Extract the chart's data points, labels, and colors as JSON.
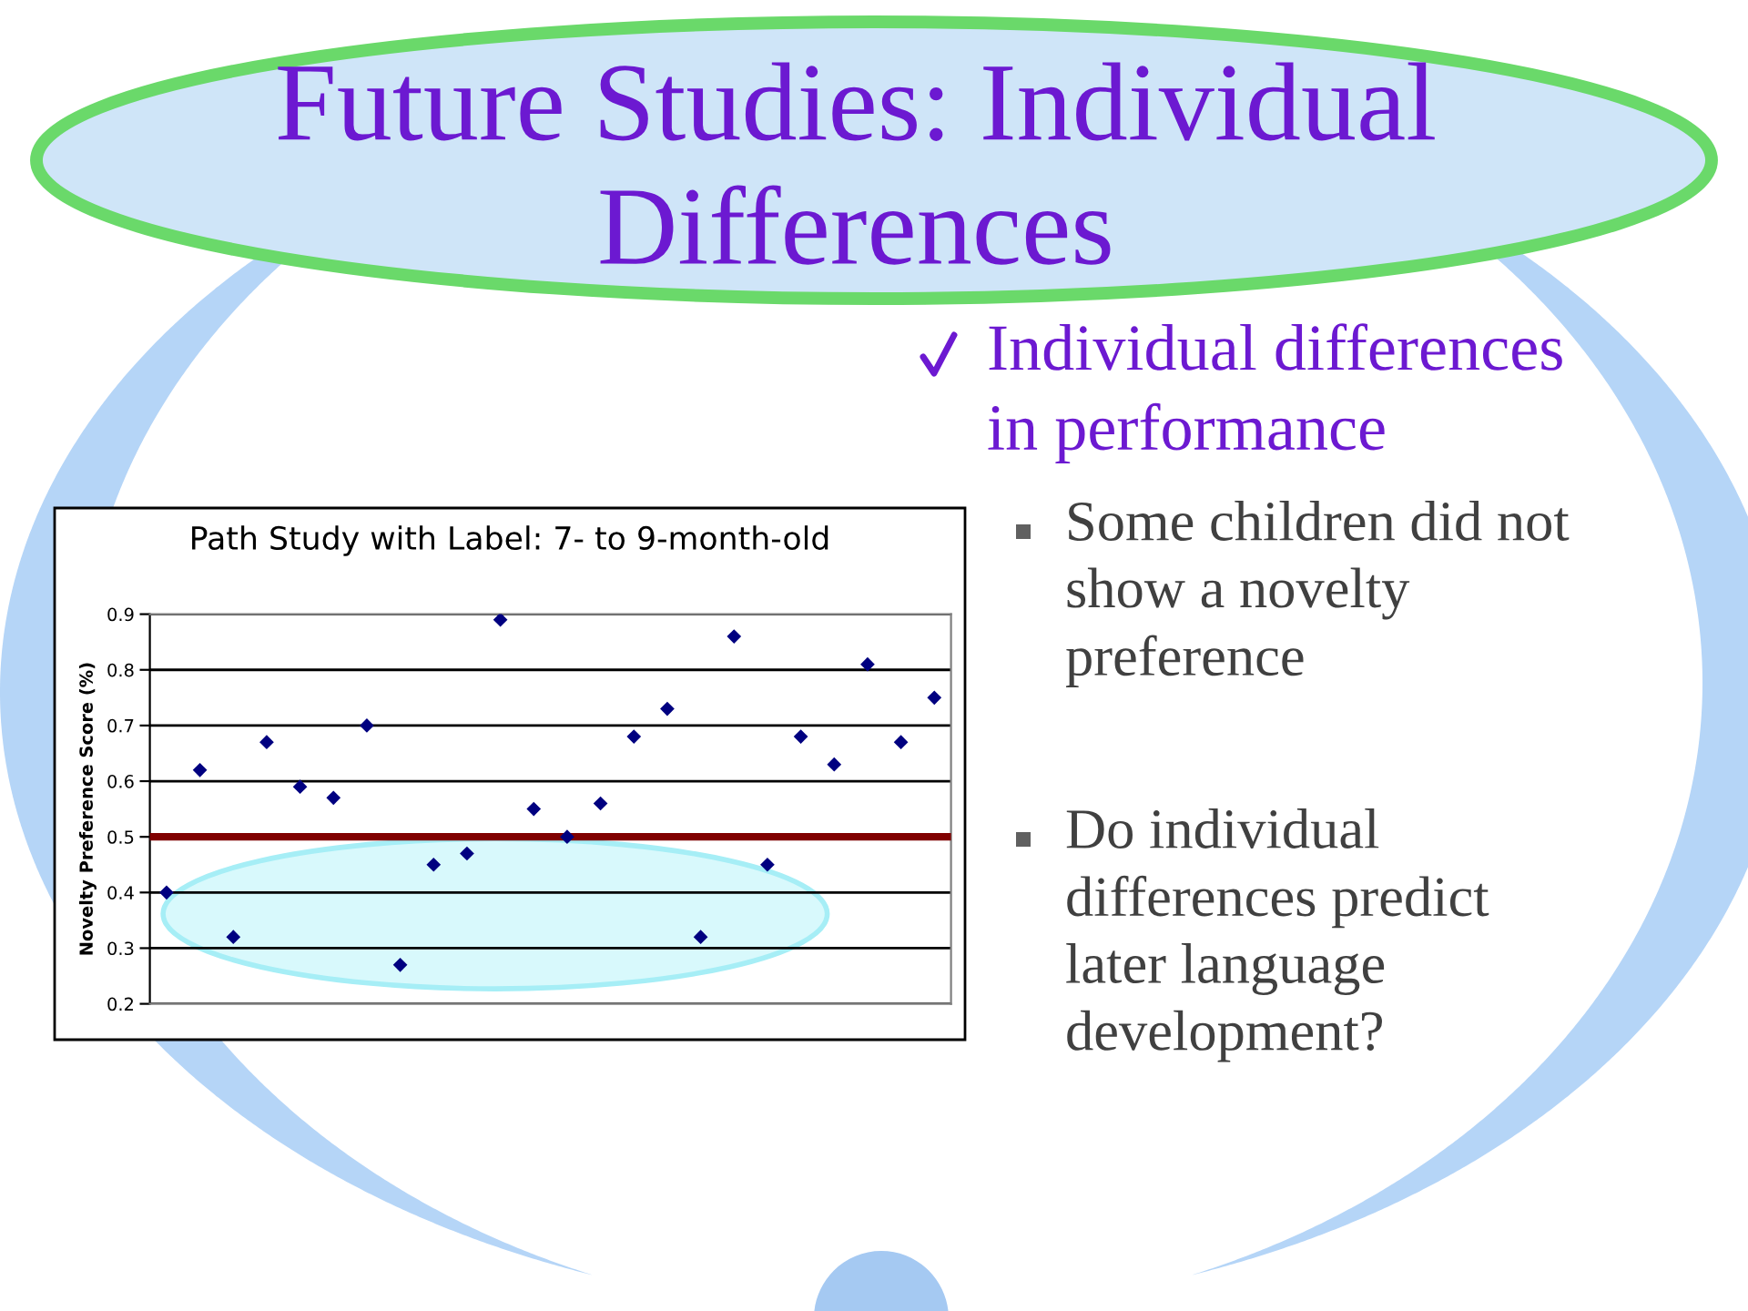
{
  "chart_data": {
    "type": "scatter",
    "title": "Future Studies: Individual Differences",
    "subtitle": "Path Study with Label: 7- to 9-month-old",
    "ylabel": "Novelty Preference Score (%)",
    "categories": [
      null,
      null,
      null,
      null,
      null,
      null,
      null,
      null,
      null,
      null,
      null,
      null,
      null,
      null,
      null,
      null,
      null,
      null,
      null,
      null,
      null,
      null,
      null,
      null
    ],
    "series": [
      {
        "color": "#000080",
        "values": [
          0.4,
          0.62,
          0.32,
          0.67,
          0.59,
          0.57,
          0.7,
          0.27,
          0.45,
          0.47,
          0.89,
          0.55,
          0.5,
          0.56,
          0.68,
          0.73,
          0.32,
          0.86,
          0.45,
          0.68,
          0.63,
          0.81,
          0.67,
          0.75
        ]
      }
    ],
    "ylim": [
      0.2,
      0.9
    ],
    "yticks": [
      0.2,
      0.3,
      0.4,
      0.5,
      0.6,
      0.7,
      0.8,
      0.9
    ],
    "grid": "y",
    "tick_labels": "y",
    "marker": "diamond",
    "ref_lines": [
      {
        "axis": "y",
        "value": 0.5,
        "color": "#800000"
      }
    ],
    "annotations": [
      "Individual differences in performance",
      "Some children did not show a novelty preference",
      "Do individual differences predict later language development?"
    ]
  }
}
